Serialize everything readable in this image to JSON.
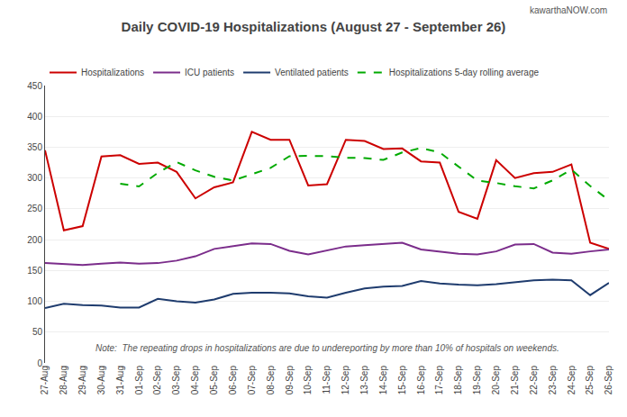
{
  "chart_data": {
    "type": "line",
    "title": "Daily COVID-19 Hospitalizations (August 27 - September 26)",
    "annotations": [
      "Note:  The repeating drops in hospitalizations are due to undereporting by more than 10% of hospitals on weekends.",
      "kawarthaNOW.com"
    ],
    "categories": [
      "27-Aug",
      "28-Aug",
      "29-Aug",
      "30-Aug",
      "31-Aug",
      "01-Sep",
      "02-Sep",
      "03-Sep",
      "04-Sep",
      "05-Sep",
      "06-Sep",
      "07-Sep",
      "08-Sep",
      "09-Sep",
      "10-Sep",
      "11-Sep",
      "12-Sep",
      "13-Sep",
      "14-Sep",
      "15-Sep",
      "16-Sep",
      "17-Sep",
      "18-Sep",
      "19-Sep",
      "20-Sep",
      "21-Sep",
      "22-Sep",
      "23-Sep",
      "24-Sep",
      "25-Sep",
      "26-Sep"
    ],
    "series": [
      {
        "name": "Hospitalizations",
        "color": "#cc0000",
        "line_style": "solid",
        "values": [
          345,
          215,
          222,
          335,
          337,
          323,
          325,
          310,
          267,
          285,
          293,
          375,
          362,
          362,
          288,
          290,
          362,
          360,
          347,
          348,
          327,
          325,
          245,
          234,
          329,
          300,
          308,
          310,
          322,
          195,
          185
        ]
      },
      {
        "name": "ICU patients",
        "color": "#7b2d8b",
        "line_style": "solid",
        "values": [
          162,
          160,
          159,
          161,
          163,
          161,
          162,
          166,
          173,
          185,
          190,
          194,
          193,
          182,
          176,
          183,
          189,
          191,
          193,
          195,
          184,
          180,
          177,
          176,
          181,
          192,
          193,
          179,
          177,
          181,
          184
        ]
      },
      {
        "name": "Ventilated patients",
        "color": "#1f3c6e",
        "line_style": "solid",
        "values": [
          89,
          96,
          94,
          93,
          90,
          90,
          104,
          100,
          98,
          103,
          112,
          114,
          114,
          113,
          108,
          106,
          114,
          121,
          124,
          125,
          133,
          129,
          127,
          126,
          128,
          131,
          134,
          135,
          134,
          110,
          130
        ]
      },
      {
        "name": "Hospitalizations 5-day rolling average",
        "color": "#00aa00",
        "line_style": "dashed",
        "values": [
          null,
          null,
          null,
          null,
          290.8,
          286.4,
          308.4,
          326,
          312.4,
          302,
          296,
          306,
          316.4,
          335.4,
          336,
          335.4,
          332.8,
          332.4,
          329.4,
          341.4,
          348.8,
          341.4,
          318.4,
          295.8,
          292,
          286.6,
          283.2,
          296.2,
          313.8,
          287,
          264
        ]
      }
    ],
    "ylim": [
      0,
      450
    ],
    "yticks": [
      0,
      50,
      100,
      150,
      200,
      250,
      300,
      350,
      400,
      450
    ],
    "grid": true,
    "legend": "upper left"
  }
}
